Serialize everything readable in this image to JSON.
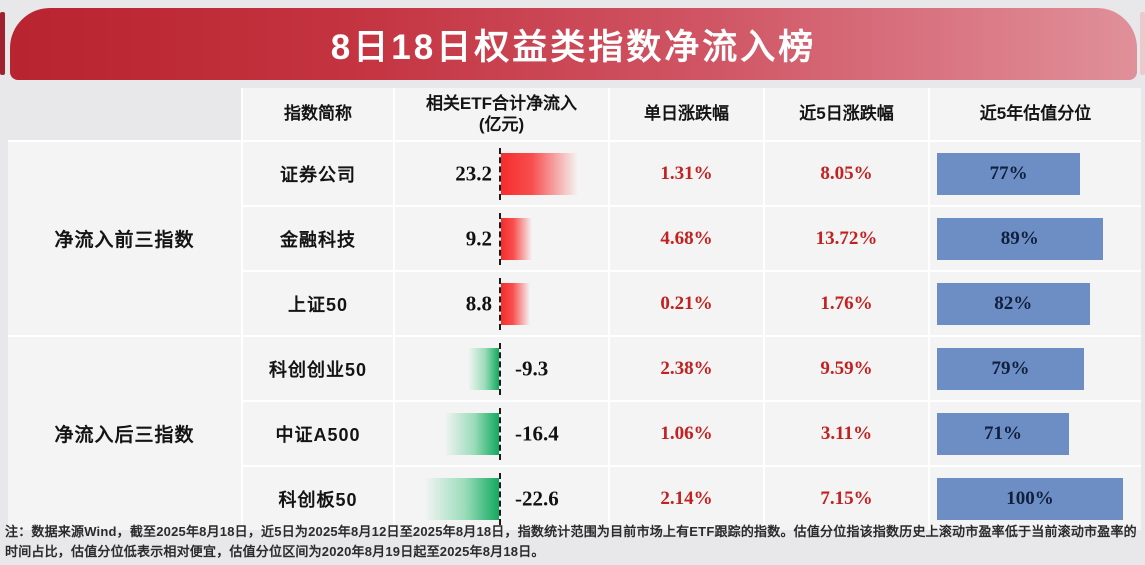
{
  "title": "8日18日权益类指数净流入榜",
  "colors": {
    "banner_left": "#b8242f",
    "banner_right": "#e0909a",
    "positive_bar": "#f62c2c",
    "negative_bar": "#12a95f",
    "valuation_bar": "#6d8ec4",
    "pct_text": "#c32020"
  },
  "table": {
    "headers": {
      "index": "指数简称",
      "inflow_line1": "相关ETF合计净流入",
      "inflow_line2": "(亿元)",
      "daily": "单日涨跌幅",
      "d5": "近5日涨跌幅",
      "valuation": "近5年估值分位"
    },
    "groups": [
      {
        "label": "净流入前三指数"
      },
      {
        "label": "净流入后三指数"
      }
    ],
    "rows": [
      {
        "name": "证券公司",
        "inflow": "23.2",
        "inflow_value": 23.2,
        "daily": "1.31%",
        "d5": "8.05%",
        "valuation": "77%",
        "valuation_value": 77
      },
      {
        "name": "金融科技",
        "inflow": "9.2",
        "inflow_value": 9.2,
        "daily": "4.68%",
        "d5": "13.72%",
        "valuation": "89%",
        "valuation_value": 89
      },
      {
        "name": "上证50",
        "inflow": "8.8",
        "inflow_value": 8.8,
        "daily": "0.21%",
        "d5": "1.76%",
        "valuation": "82%",
        "valuation_value": 82
      },
      {
        "name": "科创创业50",
        "inflow": "-9.3",
        "inflow_value": -9.3,
        "daily": "2.38%",
        "d5": "9.59%",
        "valuation": "79%",
        "valuation_value": 79
      },
      {
        "name": "中证A500",
        "inflow": "-16.4",
        "inflow_value": -16.4,
        "daily": "1.06%",
        "d5": "3.11%",
        "valuation": "71%",
        "valuation_value": 71
      },
      {
        "name": "科创板50",
        "inflow": "-22.6",
        "inflow_value": -22.6,
        "daily": "2.14%",
        "d5": "7.15%",
        "valuation": "100%",
        "valuation_value": 100
      }
    ]
  },
  "note": "注：数据来源Wind，截至2025年8月18日，近5日为2025年8月12日至2025年8月18日，指数统计范围为目前市场上有ETF跟踪的指数。估值分位指该指数历史上滚动市盈率低于当前滚动市盈率的时间占比，估值分位低表示相对便宜，估值分位区间为2020年8月19日起至2025年8月18日。",
  "chart_data": {
    "type": "table",
    "title": "8日18日权益类指数净流入榜",
    "columns": [
      "指数简称",
      "相关ETF合计净流入(亿元)",
      "单日涨跌幅",
      "近5日涨跌幅",
      "近5年估值分位"
    ],
    "row_groups": [
      "净流入前三指数",
      "净流入后三指数"
    ],
    "rows": [
      {
        "group": "净流入前三指数",
        "index": "证券公司",
        "net_inflow_yi": 23.2,
        "daily_change_pct": 1.31,
        "change_5d_pct": 8.05,
        "valuation_percentile_5y": 77
      },
      {
        "group": "净流入前三指数",
        "index": "金融科技",
        "net_inflow_yi": 9.2,
        "daily_change_pct": 4.68,
        "change_5d_pct": 13.72,
        "valuation_percentile_5y": 89
      },
      {
        "group": "净流入前三指数",
        "index": "上证50",
        "net_inflow_yi": 8.8,
        "daily_change_pct": 0.21,
        "change_5d_pct": 1.76,
        "valuation_percentile_5y": 82
      },
      {
        "group": "净流入后三指数",
        "index": "科创创业50",
        "net_inflow_yi": -9.3,
        "daily_change_pct": 2.38,
        "change_5d_pct": 9.59,
        "valuation_percentile_5y": 79
      },
      {
        "group": "净流入后三指数",
        "index": "中证A500",
        "net_inflow_yi": -16.4,
        "daily_change_pct": 1.06,
        "change_5d_pct": 3.11,
        "valuation_percentile_5y": 71
      },
      {
        "group": "净流入后三指数",
        "index": "科创板50",
        "net_inflow_yi": -22.6,
        "daily_change_pct": 2.14,
        "change_5d_pct": 7.15,
        "valuation_percentile_5y": 100
      }
    ],
    "bar_encodings": {
      "net_inflow": "horizontal diverging gradient bar from dashed zero axis, red=positive, green=negative",
      "valuation_percentile": "solid steel-blue horizontal bar, width proportional to percent"
    }
  }
}
